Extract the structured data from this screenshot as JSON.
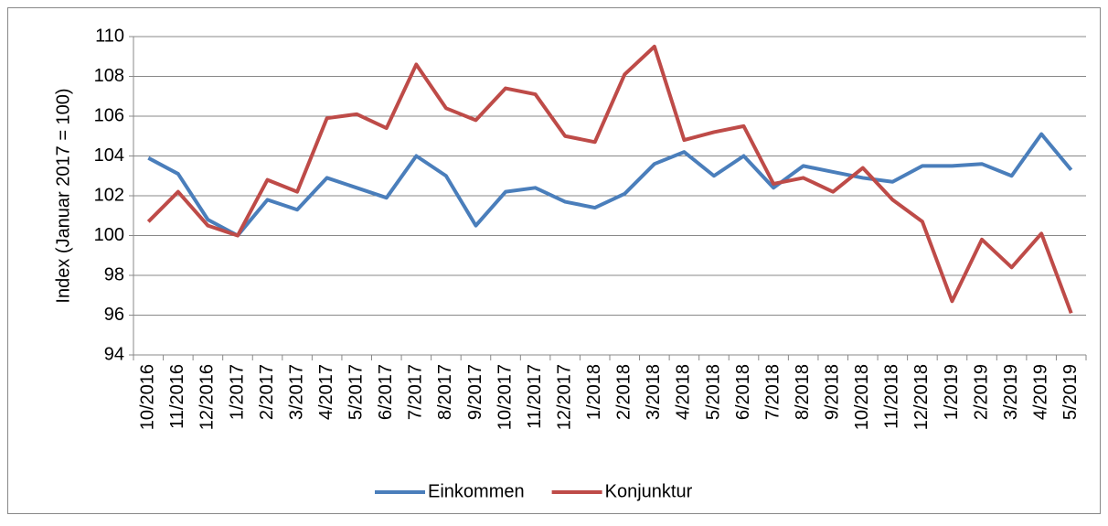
{
  "chart_data": {
    "type": "line",
    "y_label": "Index (Januar 2017 = 100)",
    "categories": [
      "10/2016",
      "11/2016",
      "12/2016",
      "1/2017",
      "2/2017",
      "3/2017",
      "4/2017",
      "5/2017",
      "6/2017",
      "7/2017",
      "8/2017",
      "9/2017",
      "10/2017",
      "11/2017",
      "12/2017",
      "1/2018",
      "2/2018",
      "3/2018",
      "4/2018",
      "5/2018",
      "6/2018",
      "7/2018",
      "8/2018",
      "9/2018",
      "10/2018",
      "11/2018",
      "12/2018",
      "1/2019",
      "2/2019",
      "3/2019",
      "4/2019",
      "5/2019"
    ],
    "series": [
      {
        "name": "Einkommen",
        "color": "#4a7ebb",
        "values": [
          103.9,
          103.1,
          100.8,
          100.0,
          101.8,
          101.3,
          102.9,
          102.4,
          101.9,
          104.0,
          103.0,
          100.5,
          102.2,
          102.4,
          101.7,
          101.4,
          102.1,
          103.6,
          104.2,
          103.0,
          104.0,
          102.4,
          103.5,
          103.2,
          102.9,
          102.7,
          103.5,
          103.5,
          103.6,
          103.0,
          105.1,
          103.3
        ]
      },
      {
        "name": "Konjunktur",
        "color": "#be4b48",
        "values": [
          100.7,
          102.2,
          100.5,
          100.0,
          102.8,
          102.2,
          105.9,
          106.1,
          105.4,
          108.6,
          106.4,
          105.8,
          107.4,
          107.1,
          105.0,
          104.7,
          108.1,
          109.5,
          104.8,
          105.2,
          105.5,
          102.6,
          102.9,
          102.2,
          103.4,
          101.8,
          100.7,
          96.7,
          99.8,
          98.4,
          100.1,
          96.1
        ]
      }
    ],
    "ylim": [
      94,
      110
    ],
    "yticks": [
      94,
      96,
      98,
      100,
      102,
      104,
      106,
      108,
      110
    ],
    "grid": true,
    "legend": "bottom"
  }
}
